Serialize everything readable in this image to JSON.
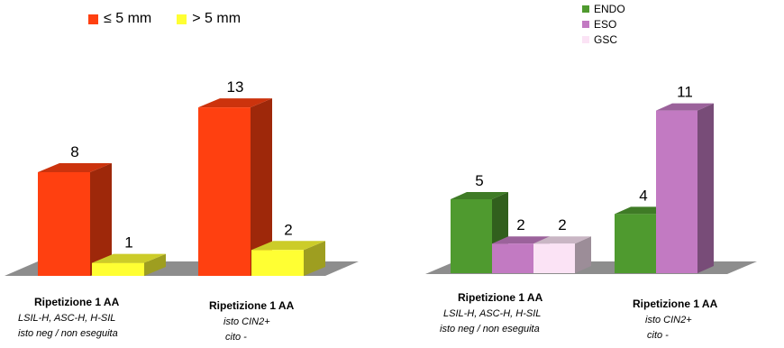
{
  "chart_data": [
    {
      "type": "bar",
      "categories": [
        {
          "title": "Ripetizione 1 AA",
          "sub": [
            "LSIL-H, ASC-H, H-SIL",
            "isto neg / non eseguita"
          ]
        },
        {
          "title": "Ripetizione 1 AA",
          "sub": [
            "isto CIN2+",
            "cito -"
          ]
        }
      ],
      "series": [
        {
          "name": "≤ 5 mm",
          "color": "#ff4010",
          "values": [
            8,
            13
          ]
        },
        {
          "name": "> 5 mm",
          "color": "#ffff33",
          "values": [
            1,
            2
          ]
        }
      ],
      "ylim": [
        0,
        13
      ],
      "legend": "top",
      "grid": false,
      "style": "3d"
    },
    {
      "type": "bar",
      "categories": [
        {
          "title": "Ripetizione 1 AA",
          "sub": [
            "LSIL-H, ASC-H, H-SIL",
            "isto neg / non eseguita"
          ]
        },
        {
          "title": "Ripetizione 1 AA",
          "sub": [
            "isto CIN2+",
            "cito -"
          ]
        }
      ],
      "series": [
        {
          "name": "ENDO",
          "color": "#4f9a2f",
          "values": [
            5,
            4
          ]
        },
        {
          "name": "ESO",
          "color": "#c27ac2",
          "values": [
            2,
            11
          ]
        },
        {
          "name": "GSC",
          "color": "#fbe3f5",
          "values": [
            2,
            null
          ]
        }
      ],
      "ylim": [
        0,
        11
      ],
      "legend": "top-right",
      "grid": false,
      "style": "3d"
    }
  ]
}
